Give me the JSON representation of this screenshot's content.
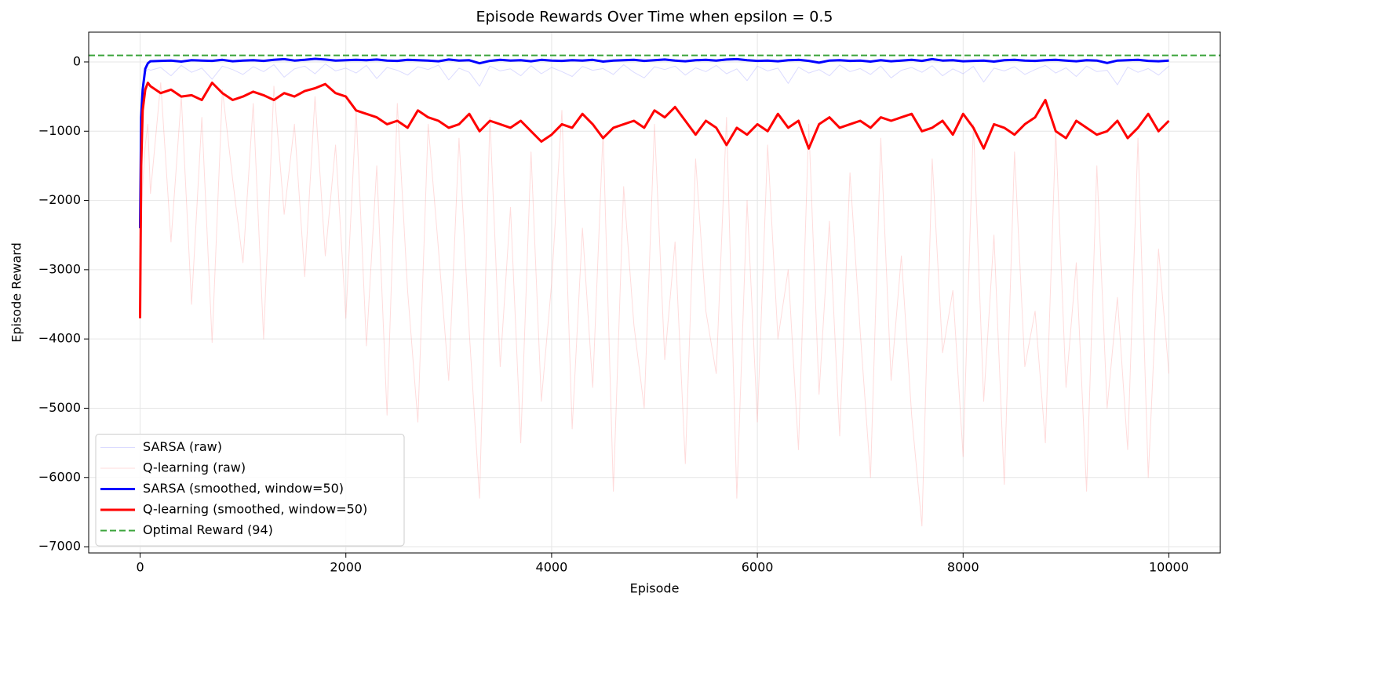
{
  "chart_data": {
    "type": "line",
    "title": "Episode Rewards Over Time when epsilon = 0.5",
    "x_label": "Episode",
    "y_label": "Episode Reward",
    "x": [
      0,
      10,
      25,
      50,
      75,
      100,
      200,
      300,
      400,
      500,
      600,
      700,
      800,
      900,
      1000,
      1100,
      1200,
      1300,
      1400,
      1500,
      1600,
      1700,
      1800,
      1900,
      2000,
      2100,
      2200,
      2300,
      2400,
      2500,
      2600,
      2700,
      2800,
      2900,
      3000,
      3100,
      3200,
      3300,
      3400,
      3500,
      3600,
      3700,
      3800,
      3900,
      4000,
      4100,
      4200,
      4300,
      4400,
      4500,
      4600,
      4700,
      4800,
      4900,
      5000,
      5100,
      5200,
      5300,
      5400,
      5500,
      5600,
      5700,
      5800,
      5900,
      6000,
      6100,
      6200,
      6300,
      6400,
      6500,
      6600,
      6700,
      6800,
      6900,
      7000,
      7100,
      7200,
      7300,
      7400,
      7500,
      7600,
      7700,
      7800,
      7900,
      8000,
      8100,
      8200,
      8300,
      8400,
      8500,
      8600,
      8700,
      8800,
      8900,
      9000,
      9100,
      9200,
      9300,
      9400,
      9500,
      9600,
      9700,
      9800,
      9900,
      10000
    ],
    "series": [
      {
        "name": "SARSA (raw)",
        "color": "#9999ff",
        "width": 1,
        "opacity": 0.35,
        "values": [
          -1500,
          -600,
          -300,
          -150,
          -100,
          -120,
          -80,
          -200,
          -50,
          -150,
          -90,
          -250,
          -60,
          -110,
          -180,
          -70,
          -140,
          -40,
          -220,
          -100,
          -60,
          -170,
          -30,
          -130,
          -90,
          -160,
          -50,
          -240,
          -80,
          -120,
          -190,
          -70,
          -110,
          -45,
          -260,
          -90,
          -150,
          -350,
          -60,
          -130,
          -100,
          -200,
          -55,
          -170,
          -80,
          -140,
          -210,
          -65,
          -120,
          -95,
          -180,
          -40,
          -150,
          -230,
          -70,
          -110,
          -60,
          -190,
          -85,
          -140,
          -50,
          -170,
          -100,
          -270,
          -60,
          -130,
          -90,
          -310,
          -75,
          -160,
          -110,
          -200,
          -45,
          -140,
          -95,
          -180,
          -60,
          -230,
          -120,
          -80,
          -150,
          -55,
          -200,
          -100,
          -170,
          -65,
          -290,
          -90,
          -130,
          -70,
          -180,
          -110,
          -50,
          -160,
          -85,
          -210,
          -60,
          -140,
          -120,
          -330,
          -75,
          -150,
          -95,
          -190,
          -60
        ]
      },
      {
        "name": "Q-learning (raw)",
        "color": "#ff9999",
        "width": 1,
        "opacity": 0.35,
        "values": [
          -3600,
          -2500,
          -1800,
          -1200,
          -900,
          -1900,
          -300,
          -2600,
          -500,
          -3500,
          -800,
          -4050,
          -400,
          -1700,
          -2900,
          -600,
          -4000,
          -350,
          -2200,
          -900,
          -3100,
          -500,
          -2800,
          -1200,
          -3700,
          -700,
          -4100,
          -1500,
          -5100,
          -600,
          -3300,
          -5200,
          -900,
          -2700,
          -4600,
          -1100,
          -3900,
          -6300,
          -800,
          -4400,
          -2100,
          -5500,
          -1300,
          -4900,
          -3200,
          -700,
          -5300,
          -2400,
          -4700,
          -1000,
          -6200,
          -1800,
          -3800,
          -5000,
          -900,
          -4300,
          -2600,
          -5800,
          -1400,
          -3600,
          -4500,
          -800,
          -6300,
          -2000,
          -5200,
          -1200,
          -4000,
          -3000,
          -5600,
          -900,
          -4800,
          -2300,
          -5400,
          -1600,
          -3900,
          -6000,
          -1100,
          -4600,
          -2800,
          -5100,
          -6700,
          -1400,
          -4200,
          -3300,
          -5700,
          -900,
          -4900,
          -2500,
          -6100,
          -1300,
          -4400,
          -3600,
          -5500,
          -1000,
          -4700,
          -2900,
          -6200,
          -1500,
          -5000,
          -3400,
          -5600,
          -1100,
          -6000,
          -2700,
          -4500
        ]
      },
      {
        "name": "SARSA (smoothed, window=50)",
        "color": "#0000ff",
        "width": 3,
        "opacity": 1,
        "values": [
          -2400,
          -800,
          -400,
          -100,
          -20,
          10,
          15,
          20,
          5,
          25,
          20,
          15,
          30,
          10,
          20,
          25,
          15,
          30,
          40,
          20,
          30,
          45,
          35,
          20,
          25,
          30,
          25,
          35,
          20,
          15,
          30,
          25,
          20,
          10,
          35,
          20,
          25,
          -20,
          15,
          30,
          20,
          25,
          10,
          30,
          20,
          15,
          25,
          20,
          30,
          5,
          20,
          25,
          30,
          15,
          25,
          35,
          20,
          10,
          25,
          30,
          20,
          35,
          40,
          25,
          15,
          20,
          10,
          25,
          30,
          15,
          -10,
          20,
          25,
          15,
          20,
          5,
          25,
          10,
          20,
          30,
          15,
          40,
          20,
          25,
          10,
          15,
          20,
          5,
          25,
          30,
          20,
          15,
          25,
          30,
          20,
          10,
          25,
          20,
          -15,
          20,
          25,
          30,
          15,
          10,
          20
        ]
      },
      {
        "name": "Q-learning (smoothed, window=50)",
        "color": "#ff0000",
        "width": 3,
        "opacity": 1,
        "values": [
          -3700,
          -1500,
          -700,
          -400,
          -300,
          -350,
          -450,
          -400,
          -500,
          -480,
          -550,
          -300,
          -450,
          -550,
          -500,
          -430,
          -480,
          -550,
          -450,
          -500,
          -420,
          -380,
          -320,
          -450,
          -500,
          -700,
          -750,
          -800,
          -900,
          -850,
          -950,
          -700,
          -800,
          -850,
          -950,
          -900,
          -750,
          -1000,
          -850,
          -900,
          -950,
          -850,
          -1000,
          -1150,
          -1050,
          -900,
          -950,
          -750,
          -900,
          -1100,
          -950,
          -900,
          -850,
          -950,
          -700,
          -800,
          -650,
          -850,
          -1050,
          -850,
          -950,
          -1200,
          -950,
          -1050,
          -900,
          -1000,
          -750,
          -950,
          -850,
          -1250,
          -900,
          -800,
          -950,
          -900,
          -850,
          -950,
          -800,
          -850,
          -800,
          -750,
          -1000,
          -950,
          -850,
          -1050,
          -750,
          -950,
          -1250,
          -900,
          -950,
          -1050,
          -900,
          -800,
          -550,
          -1000,
          -1100,
          -850,
          -950,
          -1050,
          -1000,
          -850,
          -1100,
          -950,
          -750,
          -1000,
          -850
        ]
      }
    ],
    "reference_line": {
      "name": "Optimal Reward (94)",
      "value": 94,
      "color": "#3aa33a"
    },
    "xlim": [
      -500,
      10500
    ],
    "ylim": [
      -7090,
      430
    ],
    "xticks": [
      0,
      2000,
      4000,
      6000,
      8000,
      10000
    ],
    "yticks": [
      {
        "value": -7000,
        "label": "−7000"
      },
      {
        "value": -6000,
        "label": "−6000"
      },
      {
        "value": -5000,
        "label": "−5000"
      },
      {
        "value": -4000,
        "label": "−4000"
      },
      {
        "value": -3000,
        "label": "−3000"
      },
      {
        "value": -2000,
        "label": "−2000"
      },
      {
        "value": -1000,
        "label": "−1000"
      },
      0
    ],
    "grid": true,
    "legend": "lower left"
  }
}
